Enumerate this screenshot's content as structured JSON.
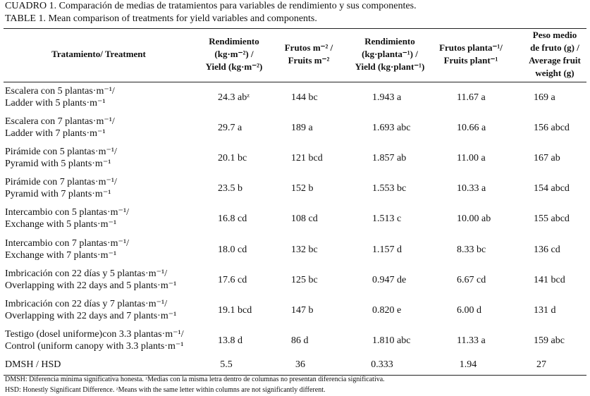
{
  "caption": {
    "es": "CUADRO 1. Comparación de medias de tratamientos para variables de rendimiento y sus componentes.",
    "en": "TABLE  1.  Mean comparison of treatments for yield variables and components."
  },
  "table": {
    "headers": [
      [
        "Tratamiento/ Treatment"
      ],
      [
        "Rendimiento",
        "(kg·m⁻²) /",
        "Yield (kg·m⁻²)"
      ],
      [
        "Frutos m⁻² /",
        "Fruits m⁻²"
      ],
      [
        "Rendimiento",
        "(kg·planta⁻¹) /",
        "Yield (kg·plant⁻¹)"
      ],
      [
        "Frutos planta⁻¹/",
        "Fruits plant⁻¹"
      ],
      [
        "Peso medio",
        "de fruto (g) /",
        "Average fruit",
        "weight (g)"
      ]
    ],
    "rows": [
      {
        "treatment": [
          "Escalera con 5 plantas·m⁻¹/",
          "Ladder with 5 plants·m⁻¹"
        ],
        "values": [
          "24.3 abᶻ",
          "144 bc",
          "1.943 a",
          "11.67 a",
          "169 a"
        ]
      },
      {
        "treatment": [
          "Escalera con 7 plantas·m⁻¹/",
          "Ladder with 7 plants·m⁻¹"
        ],
        "values": [
          "29.7 a",
          "189 a",
          "1.693 abc",
          "10.66 a",
          "156 abcd"
        ]
      },
      {
        "treatment": [
          "Pirámide con 5 plantas·m⁻¹/",
          "Pyramid with 5 plants·m⁻¹"
        ],
        "values": [
          "20.1 bc",
          "121 bcd",
          "1.857 ab",
          "11.00 a",
          "167 ab"
        ]
      },
      {
        "treatment": [
          "Pirámide con 7 plantas·m⁻¹/",
          "Pyramid with 7 plants·m⁻¹"
        ],
        "values": [
          "23.5 b",
          "152 b",
          "1.553 bc",
          "10.33 a",
          "154 abcd"
        ]
      },
      {
        "treatment": [
          "Intercambio con 5 plantas·m⁻¹/",
          "Exchange with 5 plants·m⁻¹"
        ],
        "values": [
          "16.8 cd",
          "108 cd",
          "1.513 c",
          "10.00 ab",
          "155 abcd"
        ]
      },
      {
        "treatment": [
          "Intercambio con 7 plantas·m⁻¹/",
          "Exchange with 7 plants·m⁻¹"
        ],
        "values": [
          "18.0 cd",
          "132 bc",
          "1.157 d",
          "8.33 bc",
          "136 cd"
        ]
      },
      {
        "treatment": [
          "Imbricación con 22 días y 5 plantas·m⁻¹/",
          "Overlapping with 22 days and 5 plants·m⁻¹"
        ],
        "values": [
          "17.6 cd",
          "125 bc",
          "0.947 de",
          "6.67 cd",
          "141 bcd"
        ]
      },
      {
        "treatment": [
          "Imbricación con 22 días y 7 plantas·m⁻¹/",
          "Overlapping with 22 days and 7 plants·m⁻¹"
        ],
        "values": [
          "19.1 bcd",
          "147 b",
          "0.820 e",
          "6.00 d",
          "131 d"
        ]
      },
      {
        "treatment": [
          "Testigo (dosel uniforme)con 3.3 plantas·m⁻¹/",
          "Control (uniform canopy with 3.3 plants·m⁻¹"
        ],
        "values": [
          "13.8 d",
          "86 d",
          "1.810 abc",
          "11.33 a",
          "159 abc"
        ]
      }
    ],
    "hsd": {
      "label": "DMSH / HSD",
      "values": [
        "5.5",
        "36",
        "0.333",
        "1.94",
        "27"
      ]
    }
  },
  "footnotes": [
    "DMSH: Diferencia mínima significativa honesta. ᶻMedias con la misma letra dentro de columnas no presentan diferencia significativa.",
    "HSD: Honestly Significant Difference. ᶻMeans with the same letter within columns are not significantly different."
  ]
}
